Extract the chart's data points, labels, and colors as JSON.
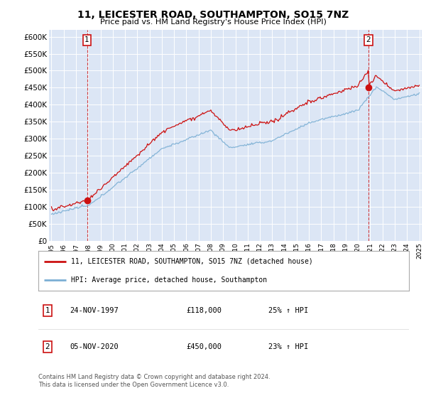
{
  "title": "11, LEICESTER ROAD, SOUTHAMPTON, SO15 7NZ",
  "subtitle": "Price paid vs. HM Land Registry's House Price Index (HPI)",
  "background_color": "#ffffff",
  "plot_bg_color": "#dce6f5",
  "red_line_label": "11, LEICESTER ROAD, SOUTHAMPTON, SO15 7NZ (detached house)",
  "blue_line_label": "HPI: Average price, detached house, Southampton",
  "annotation1_date": "24-NOV-1997",
  "annotation1_price": "£118,000",
  "annotation1_hpi": "25% ↑ HPI",
  "annotation2_date": "05-NOV-2020",
  "annotation2_price": "£450,000",
  "annotation2_hpi": "23% ↑ HPI",
  "footer": "Contains HM Land Registry data © Crown copyright and database right 2024.\nThis data is licensed under the Open Government Licence v3.0.",
  "ylim": [
    0,
    620000
  ],
  "yticks": [
    0,
    50000,
    100000,
    150000,
    200000,
    250000,
    300000,
    350000,
    400000,
    450000,
    500000,
    550000,
    600000
  ],
  "year_start": 1995,
  "year_end": 2025,
  "sale1_year": 1997.9,
  "sale1_value": 118000,
  "sale2_year": 2020.85,
  "sale2_value": 450000
}
